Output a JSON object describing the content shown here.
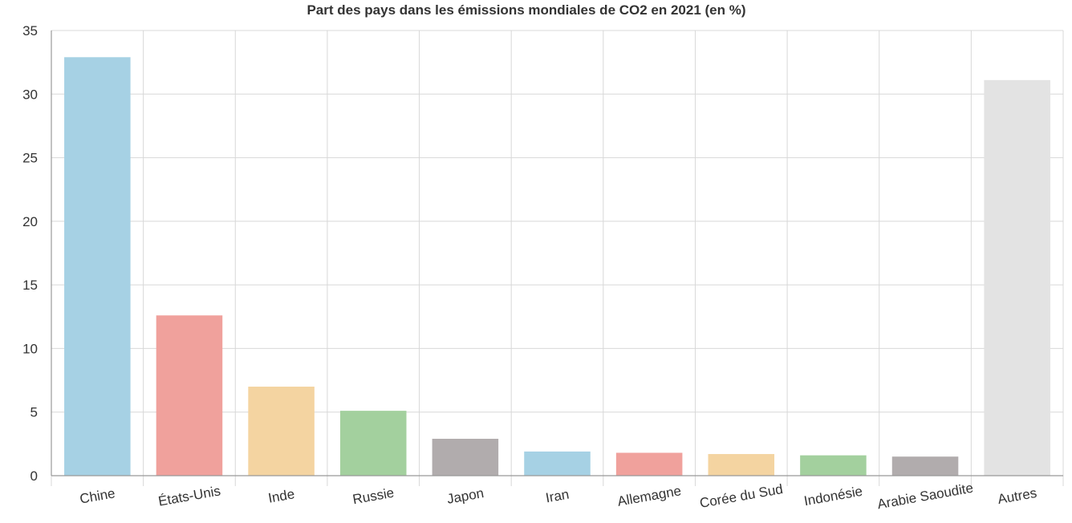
{
  "chart_data": {
    "type": "bar",
    "title": "Part des pays dans les émissions mondiales de CO2 en 2021 (en %)",
    "xlabel": "",
    "ylabel": "",
    "ylim": [
      0,
      35
    ],
    "yticks": [
      0,
      5,
      10,
      15,
      20,
      25,
      30,
      35
    ],
    "grid": true,
    "categories": [
      "Chine",
      "États-Unis",
      "Inde",
      "Russie",
      "Japon",
      "Iran",
      "Allemagne",
      "Corée du Sud",
      "Indonésie",
      "Arabie Saoudite",
      "Autres"
    ],
    "values": [
      32.9,
      12.6,
      7.0,
      5.1,
      2.9,
      1.9,
      1.8,
      1.7,
      1.6,
      1.5,
      31.1
    ],
    "colors": [
      "#a6d1e4",
      "#f0a19c",
      "#f4d4a1",
      "#a3d09e",
      "#b1acad",
      "#a6d1e4",
      "#f0a19c",
      "#f4d4a1",
      "#a3d09e",
      "#b1acad",
      "#e3e3e3"
    ]
  }
}
